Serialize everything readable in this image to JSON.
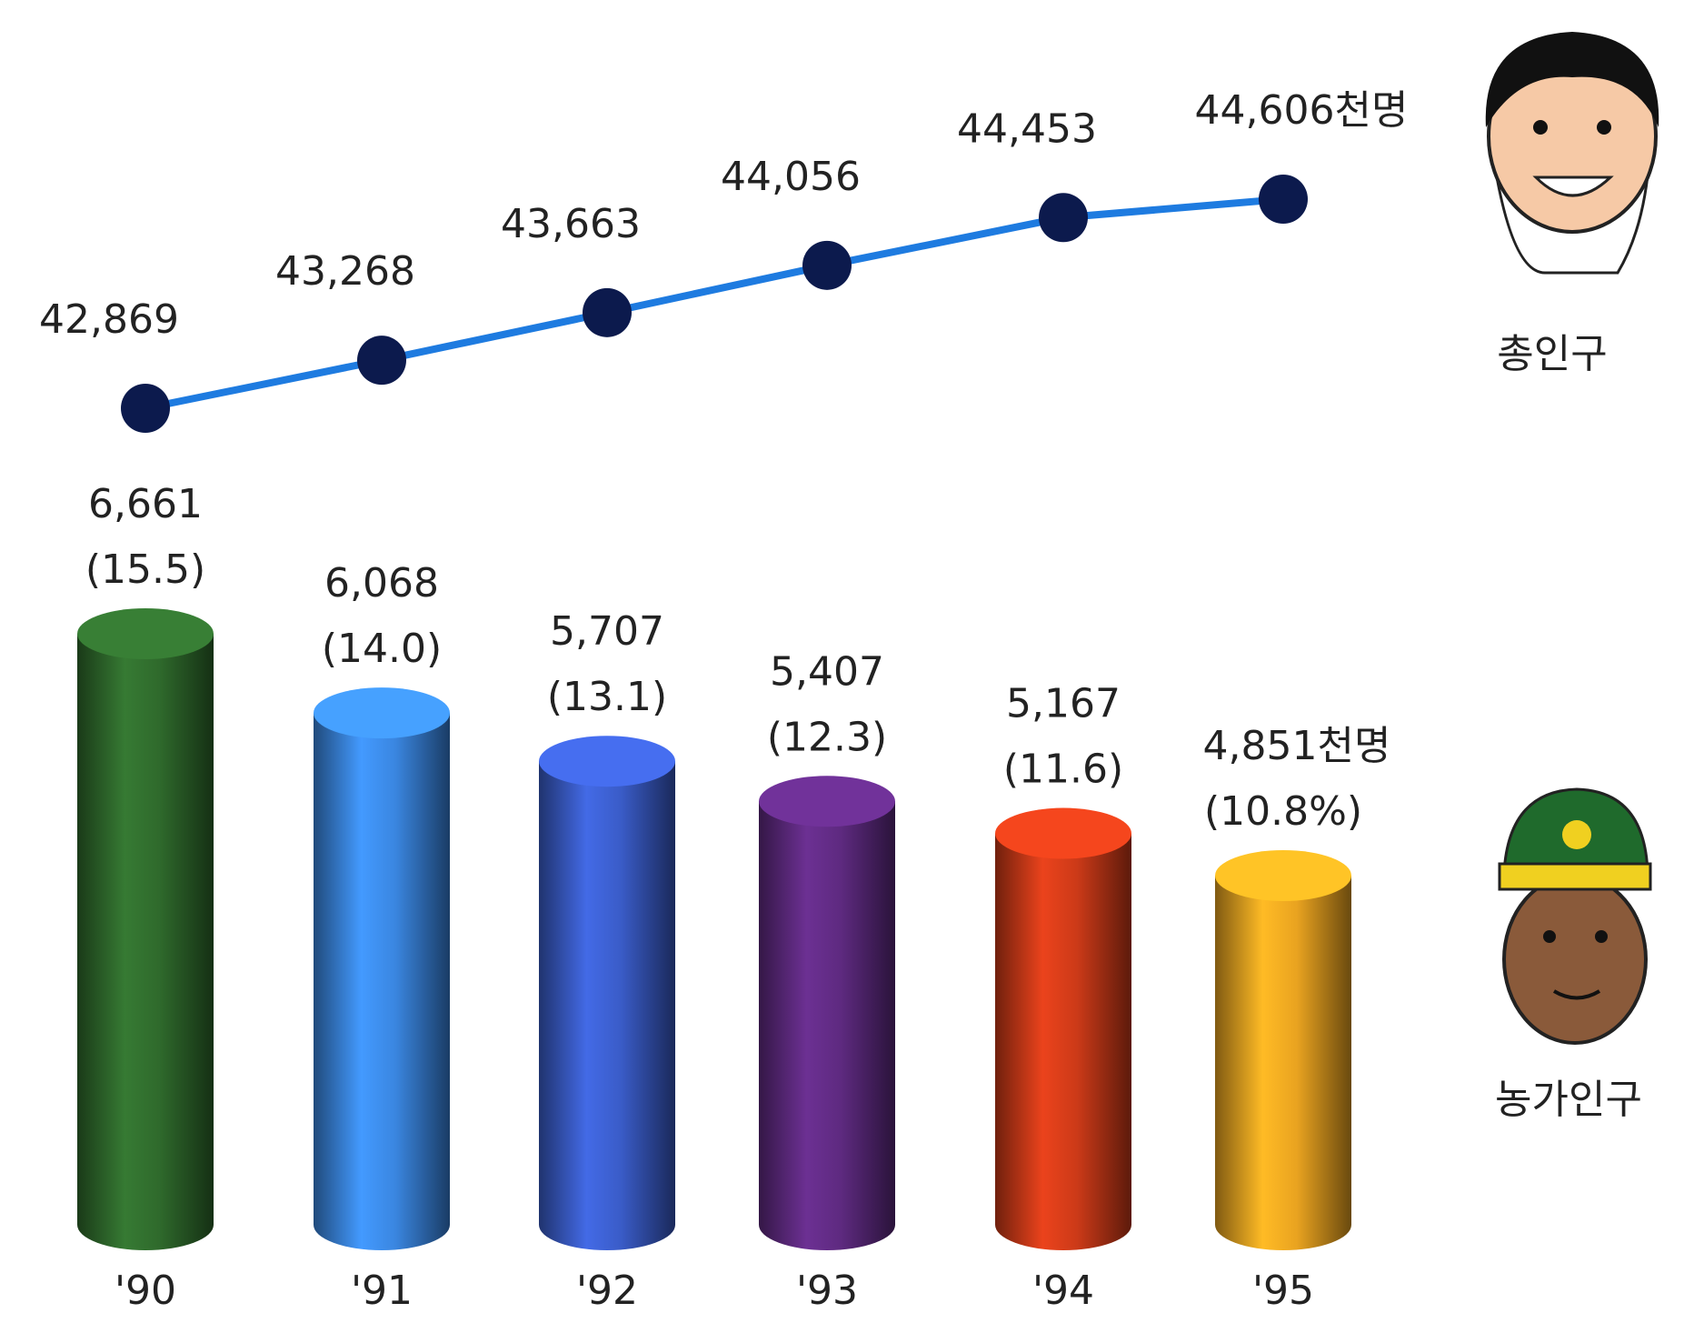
{
  "chart_data": {
    "type": "bar",
    "categories": [
      "'90",
      "'91",
      "'92",
      "'93",
      "'94",
      "'95"
    ],
    "series": [
      {
        "name": "총인구",
        "type": "line",
        "color": "#1e7be0",
        "marker_color": "#0c1a4d",
        "values": [
          42869,
          43268,
          43663,
          44056,
          44453,
          44606
        ],
        "value_labels": [
          "42,869",
          "43,268",
          "43,663",
          "44,056",
          "44,453",
          "44,606천명"
        ]
      },
      {
        "name": "농가인구",
        "type": "bar",
        "colors": [
          "#2f6a2c",
          "#3a86e0",
          "#3a5cc8",
          "#5e2a80",
          "#cc3a18",
          "#e9a320"
        ],
        "values": [
          6661,
          6068,
          5707,
          5407,
          5167,
          4851
        ],
        "value_labels": [
          "6,661",
          "6,068",
          "5,707",
          "5,407",
          "5,167",
          "4,851천명"
        ],
        "share_values": [
          15.5,
          14.0,
          13.1,
          12.3,
          11.6,
          10.8
        ],
        "share_labels": [
          "(15.5)",
          "(14.0)",
          "(13.1)",
          "(12.3)",
          "(11.6)",
          "(10.8%)"
        ]
      }
    ]
  }
}
